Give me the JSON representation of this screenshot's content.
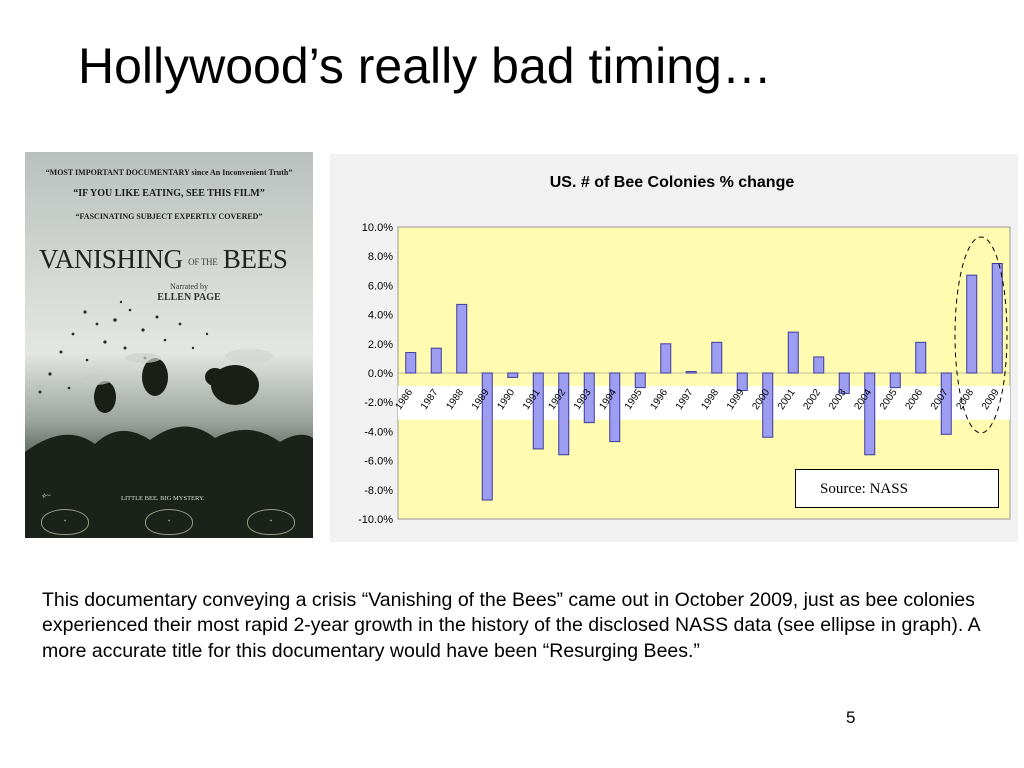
{
  "slide": {
    "title": "Hollywood’s really bad timing…",
    "body": "This documentary conveying a crisis “Vanishing of the Bees” came out in October 2009, just as bee colonies experienced their most rapid 2-year growth in the history of the disclosed NASS data (see ellipse in graph).  A more accurate title for this documentary would have been “Resurging Bees.”",
    "page_number": "5",
    "source_note": "Source: NASS"
  },
  "poster": {
    "quote1": "“MOST IMPORTANT DOCUMENTARY since An Inconvenient Truth”",
    "quote2": "“IF YOU LIKE EATING, SEE THIS FILM”",
    "quote3": "“FASCINATING SUBJECT EXPERTLY COVERED”",
    "title_left": "VANISHING",
    "title_of": "OF THE",
    "title_right": "BEES",
    "narrated_by": "Narrated by",
    "narrator": "ELLEN PAGE",
    "tagline": "LITTLE BEE. BIG MYSTERY.",
    "image_icon": "bees-flying-over-plant-image"
  },
  "chart_data": {
    "type": "bar",
    "title": "US. # of Bee Colonies % change",
    "categories": [
      "1986",
      "1987",
      "1988",
      "1989",
      "1990",
      "1991",
      "1992",
      "1993",
      "1994",
      "1995",
      "1996",
      "1997",
      "1998",
      "1999",
      "2000",
      "2001",
      "2002",
      "2003",
      "2004",
      "2005",
      "2006",
      "2007",
      "2008",
      "2009"
    ],
    "values": [
      1.4,
      1.7,
      4.7,
      -8.7,
      -0.3,
      -5.2,
      -5.6,
      -3.4,
      -4.7,
      -1.0,
      2.0,
      0.1,
      2.1,
      -1.2,
      -4.4,
      2.8,
      1.1,
      -1.4,
      -5.6,
      -1.0,
      2.1,
      -4.2,
      6.7,
      7.5
    ],
    "y_ticks": [
      "10.0%",
      "8.0%",
      "6.0%",
      "4.0%",
      "2.0%",
      "0.0%",
      "-2.0%",
      "-4.0%",
      "-6.0%",
      "-8.0%",
      "-10.0%"
    ],
    "ylim": [
      -10,
      10
    ],
    "xlabel": "",
    "ylabel": "",
    "grid": false,
    "highlight": "ellipse around 2008–2009",
    "colors": {
      "plot_bg": "#fffbb0",
      "bar_fill": "#9d9ef2",
      "bar_stroke": "#3a3a9c",
      "label_band": "#ffffff"
    }
  }
}
